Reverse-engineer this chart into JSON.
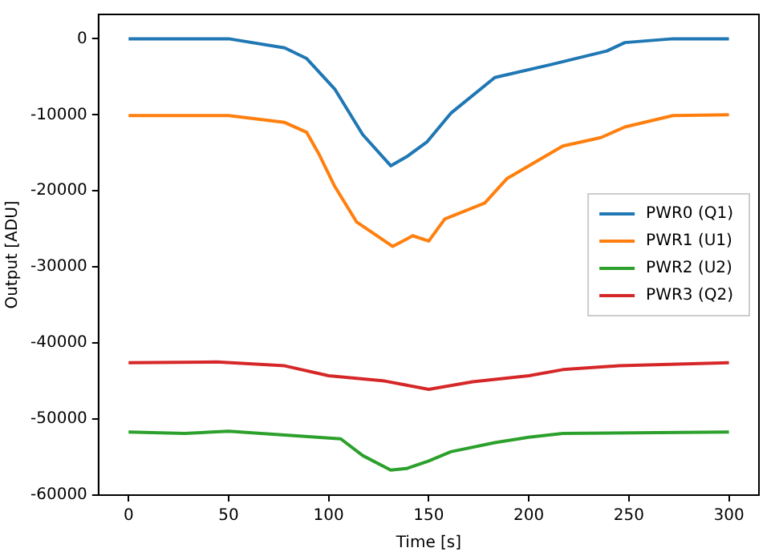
{
  "chart_data": {
    "type": "line",
    "xlabel": "Time [s]",
    "ylabel": "Output [ADU]",
    "xlim": [
      -15,
      315
    ],
    "xticks": [
      0,
      50,
      100,
      150,
      200,
      250,
      300
    ],
    "ylim": [
      -60000,
      3200
    ],
    "yticks": [
      -60000,
      -50000,
      -40000,
      -30000,
      -20000,
      -10000,
      0
    ],
    "grid": false,
    "legend": "right",
    "marker": "none",
    "line_style": "solid",
    "series": [
      {
        "name": "PWR0 (Q1)",
        "color": "#1f77b4",
        "x": [
          0,
          50,
          78,
          89,
          103,
          117,
          131,
          139,
          149,
          161,
          183,
          211,
          239,
          248,
          272,
          300
        ],
        "values": [
          0,
          0,
          -1200,
          -2600,
          -6600,
          -12600,
          -16700,
          -15500,
          -13600,
          -9800,
          -5100,
          -3400,
          -1600,
          -500,
          0,
          0
        ]
      },
      {
        "name": "PWR1 (U1)",
        "color": "#ff7f0e",
        "x": [
          0,
          50,
          78,
          89,
          95,
          103,
          114,
          132,
          142,
          150,
          158,
          178,
          189,
          217,
          236,
          248,
          272,
          300
        ],
        "values": [
          -10100,
          -10100,
          -11000,
          -12300,
          -15100,
          -19400,
          -24100,
          -27300,
          -25900,
          -26600,
          -23700,
          -21600,
          -18400,
          -14100,
          -13000,
          -11600,
          -10100,
          -10000
        ]
      },
      {
        "name": "PWR2 (U2)",
        "color": "#2ca02c",
        "x": [
          0,
          28,
          50,
          78,
          106,
          117,
          131,
          139,
          150,
          161,
          183,
          200,
          217,
          300
        ],
        "values": [
          -51700,
          -51900,
          -51600,
          -52100,
          -52600,
          -54800,
          -56700,
          -56500,
          -55500,
          -54300,
          -53100,
          -52400,
          -51900,
          -51700
        ]
      },
      {
        "name": "PWR3 (Q2)",
        "color": "#d62728",
        "x": [
          0,
          44,
          78,
          100,
          128,
          150,
          172,
          200,
          217,
          245,
          300
        ],
        "values": [
          -42600,
          -42500,
          -43000,
          -44300,
          -45000,
          -46100,
          -45100,
          -44300,
          -43500,
          -43000,
          -42600
        ]
      }
    ]
  }
}
